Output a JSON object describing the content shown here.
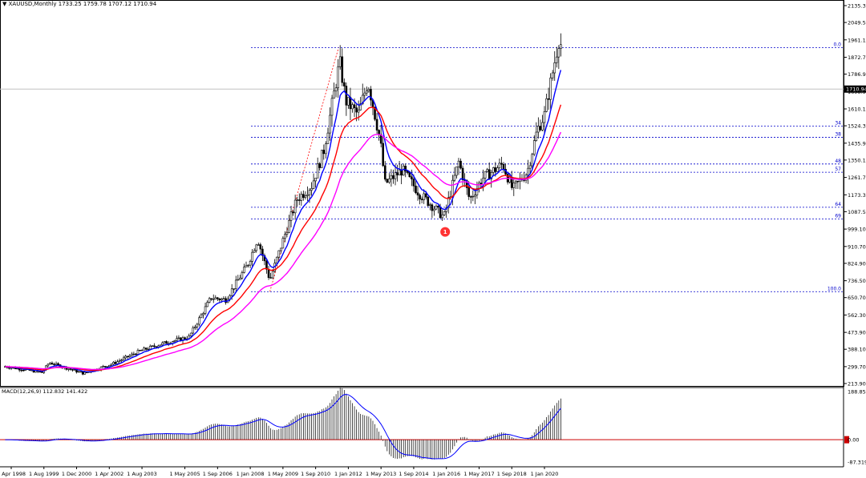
{
  "header": {
    "symbol_line": "▼ XAUUSD,Monthly  1733.25 1759.78 1707.12 1710.94"
  },
  "macd_panel": {
    "label": "MACD(12,26,9) 112.832 141.422",
    "y_ticks": [
      "188.856",
      "0.00",
      "-87.319"
    ]
  },
  "colors": {
    "ma_fast": "#0000ff",
    "ma_mid": "#ff0000",
    "ma_slow": "#ff00ff",
    "fib_lines": "#0000cc",
    "macd_signal": "#0000ff",
    "macd_zero": "#cc0000",
    "price_line": "#c0c0c0",
    "marker": "#ff3333"
  },
  "chart_data": {
    "type": "candlestick",
    "title": "XAUUSD,Monthly",
    "last": {
      "open": 1733.25,
      "high": 1759.78,
      "low": 1707.12,
      "close": 1710.94,
      "label": "1710.94"
    },
    "y_range": [
      213.9,
      2135.3
    ],
    "y_ticks": [
      "2135.30",
      "2049.50",
      "1961.10",
      "1872.70",
      "1786.90",
      "1698.50",
      "1610.10",
      "1524.30",
      "1435.90",
      "1350.10",
      "1261.70",
      "1173.30",
      "1087.50",
      "999.10",
      "910.70",
      "824.90",
      "736.50",
      "650.70",
      "562.30",
      "473.90",
      "388.10",
      "299.70",
      "213.90"
    ],
    "x_ticks": [
      "1 Apr 1998",
      "1 Aug 1999",
      "1 Dec 2000",
      "1 Apr 2002",
      "1 Aug 2003",
      "1 May 2005",
      "1 Sep 2006",
      "1 Jan 2008",
      "1 May 2009",
      "1 Sep 2010",
      "1 Jan 2012",
      "1 May 2013",
      "1 Sep 2014",
      "1 Jan 2016",
      "1 May 2017",
      "1 Sep 2018",
      "1 Jan 2020"
    ],
    "fib_levels": [
      {
        "label": "0.0",
        "price": 1921
      },
      {
        "label": "34",
        "price": 1522
      },
      {
        "label": "38",
        "price": 1466
      },
      {
        "label": "48",
        "price": 1330
      },
      {
        "label": "57",
        "price": 1288
      },
      {
        "label": "64",
        "price": 1110
      },
      {
        "label": "69",
        "price": 1050
      },
      {
        "label": "100.0",
        "price": 681
      }
    ],
    "marker": {
      "label": "1",
      "date": "2015-12",
      "price": 985
    },
    "series": [
      {
        "name": "ma_fast",
        "color": "#0000ff"
      },
      {
        "name": "ma_mid",
        "color": "#ff0000"
      },
      {
        "name": "ma_slow",
        "color": "#ff00ff"
      }
    ]
  }
}
